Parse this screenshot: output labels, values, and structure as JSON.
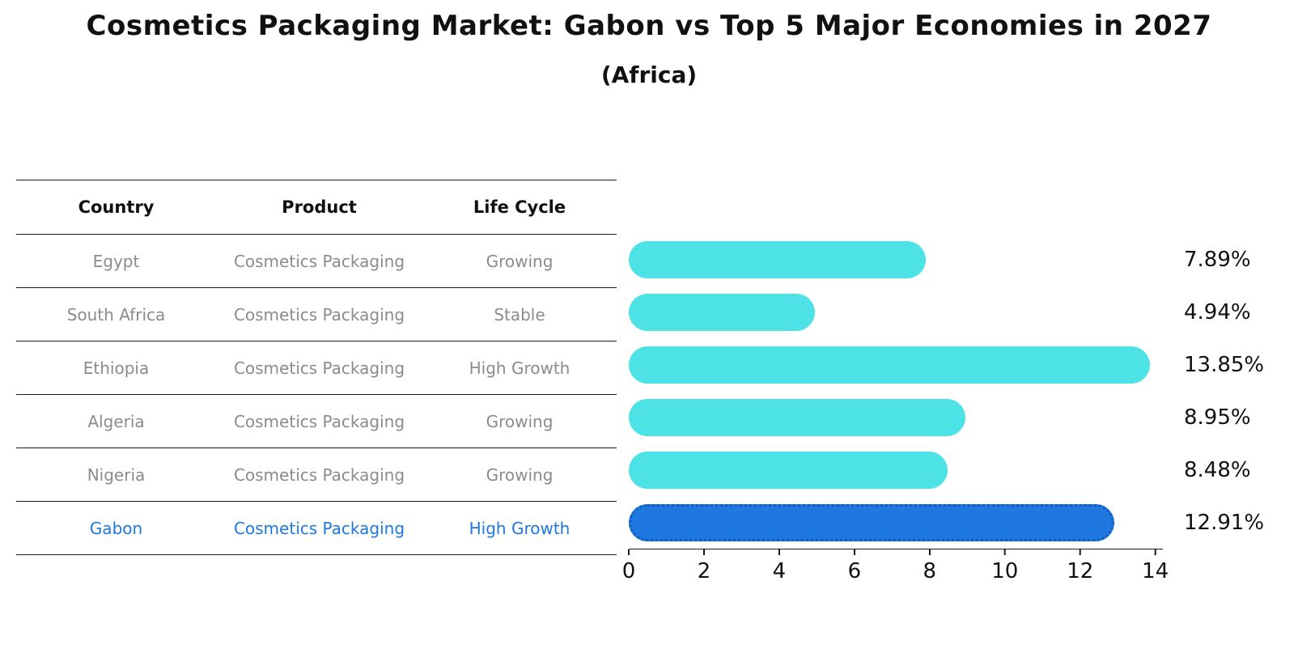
{
  "title": "Cosmetics Packaging Market: Gabon vs Top 5 Major Economies in 2027",
  "subtitle": "(Africa)",
  "table": {
    "headers": [
      "Country",
      "Product",
      "Life Cycle"
    ]
  },
  "rows": [
    {
      "country": "Egypt",
      "product": "Cosmetics Packaging",
      "life_cycle": "Growing"
    },
    {
      "country": "South Africa",
      "product": "Cosmetics Packaging",
      "life_cycle": "Stable"
    },
    {
      "country": "Ethiopia",
      "product": "Cosmetics Packaging",
      "life_cycle": "High Growth"
    },
    {
      "country": "Algeria",
      "product": "Cosmetics Packaging",
      "life_cycle": "Growing"
    },
    {
      "country": "Nigeria",
      "product": "Cosmetics Packaging",
      "life_cycle": "Growing"
    },
    {
      "country": "Gabon",
      "product": "Cosmetics Packaging",
      "life_cycle": "High Growth"
    }
  ],
  "chart_data": {
    "type": "bar",
    "orientation": "horizontal",
    "title": "Cosmetics Packaging Market: Gabon vs Top 5 Major Economies in 2027 (Africa)",
    "categories": [
      "Egypt",
      "South Africa",
      "Ethiopia",
      "Algeria",
      "Nigeria",
      "Gabon"
    ],
    "values": [
      7.89,
      4.94,
      13.85,
      8.95,
      8.48,
      12.91
    ],
    "value_labels": [
      "7.89%",
      "4.94%",
      "13.85%",
      "8.95%",
      "8.48%",
      "12.91%"
    ],
    "xticks": [
      0,
      2,
      4,
      6,
      8,
      10,
      12,
      14
    ],
    "xlim": [
      0,
      14.2
    ],
    "grid": false,
    "legend": "none",
    "bar_color": "#4DE3E6",
    "highlight_color": "#1E78E0",
    "highlight_index": 5
  }
}
